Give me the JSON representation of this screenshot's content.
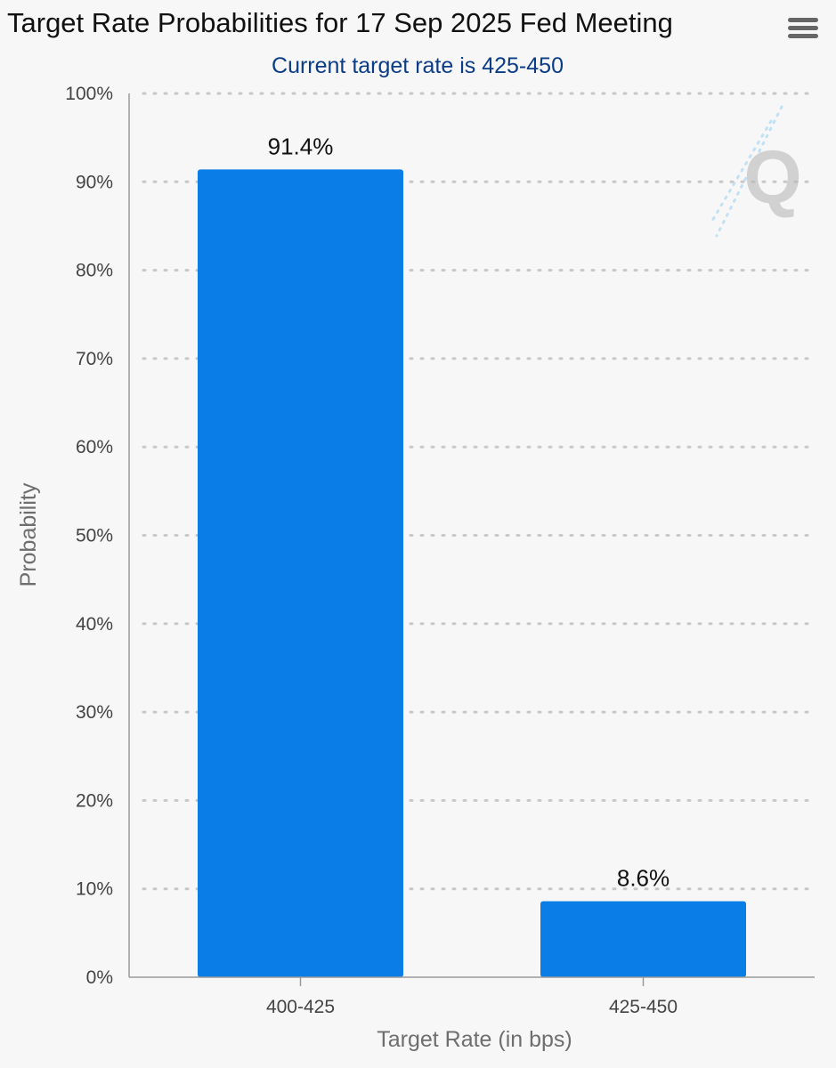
{
  "menu": {
    "icon": "hamburger-menu-icon"
  },
  "watermark": {
    "icon": "q-logo-icon",
    "text": "Q"
  },
  "colors": {
    "bar": "#0a7ee6",
    "subtitle": "#0b3c86",
    "grid": "#c8c8c8"
  },
  "chart_data": {
    "type": "bar",
    "title": "Target Rate Probabilities for 17 Sep 2025 Fed Meeting",
    "subtitle": "Current target rate is 425-450",
    "xlabel": "Target Rate (in bps)",
    "ylabel": "Probability",
    "categories": [
      "400-425",
      "425-450"
    ],
    "values": [
      91.4,
      8.6
    ],
    "data_labels": [
      "91.4%",
      "8.6%"
    ],
    "ylim": [
      0,
      100
    ],
    "yticks": [
      0,
      10,
      20,
      30,
      40,
      50,
      60,
      70,
      80,
      90,
      100
    ],
    "ytick_labels": [
      "0%",
      "10%",
      "20%",
      "30%",
      "40%",
      "50%",
      "60%",
      "70%",
      "80%",
      "90%",
      "100%"
    ],
    "grid": true,
    "legend": "none"
  }
}
